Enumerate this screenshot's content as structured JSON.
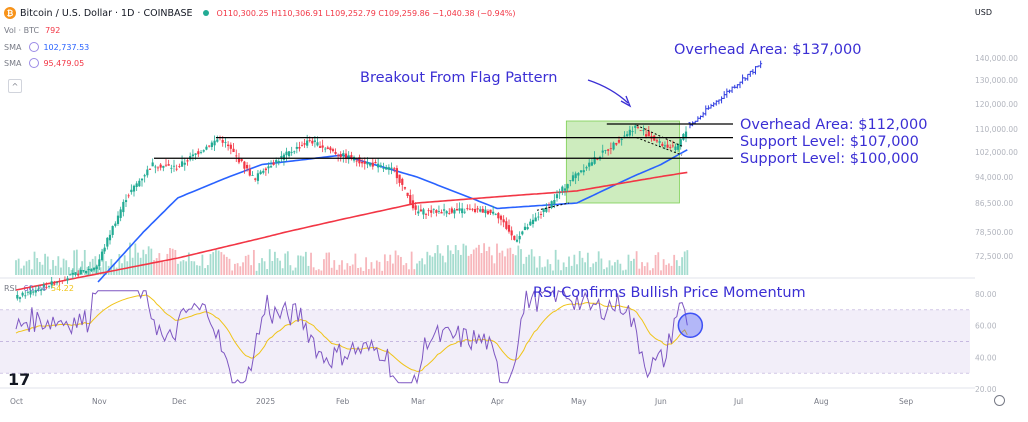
{
  "header": {
    "symbol": "Bitcoin / U.S. Dollar · 1D · COINBASE",
    "ohlc": "O110,300.25 H110,306.91 L109,252.79 C109,259.86 −1,040.38 (−0.94%)",
    "logo_glyph": "₿"
  },
  "indicators": {
    "vol_label": "Vol · BTC",
    "vol_value": "792",
    "sma1_label": "SMA",
    "sma1_value": "102,737.53",
    "sma2_label": "SMA",
    "sma2_value": "95,479.05"
  },
  "currency": "USD",
  "rsi_header": {
    "label": "RSI",
    "value1": "60.24",
    "value2": "54.22"
  },
  "annotations": {
    "overhead_137": "Overhead Area: $137,000",
    "breakout": "Breakout From Flag Pattern",
    "overhead_112": "Overhead Area: $112,000",
    "support_107": "Support Level: $107,000",
    "support_100": "Support Level: $100,000",
    "rsi_note": "RSI Confirms Bullish Price Momentum"
  },
  "colors": {
    "annotation": "#3b2fd4",
    "sma_fast": "#2962ff",
    "sma_slow": "#f23645",
    "candle_up": "#22ab94",
    "candle_down": "#f23645",
    "projection": "#2f3ce0",
    "rsi_line": "#7e57c2",
    "rsi_ma": "#f0c419"
  },
  "chart_data": {
    "type": "candlestick",
    "y_axis_ticks": [
      "140,000.00",
      "130,000.00",
      "120,000.00",
      "110,000.00",
      "102,000.00",
      "94,000.00",
      "86,500.00",
      "78,500.00",
      "72,500.00"
    ],
    "y_axis_values": [
      140000,
      130000,
      120000,
      110000,
      102000,
      94000,
      86500,
      78500,
      72500
    ],
    "x_axis_ticks": [
      "Oct",
      "Nov",
      "Dec",
      "2025",
      "Feb",
      "Mar",
      "Apr",
      "May",
      "Jun",
      "Jul",
      "Aug",
      "Sep"
    ],
    "horizontal_levels": [
      112000,
      107000,
      100000
    ],
    "target_level": 137000,
    "price_path": [
      {
        "date": "Oct",
        "close": 62000
      },
      {
        "date": "Nov",
        "close": 70000
      },
      {
        "date": "Nov 12",
        "close": 88000
      },
      {
        "date": "Nov 22",
        "close": 98000
      },
      {
        "date": "Dec",
        "close": 97000
      },
      {
        "date": "Dec 17",
        "close": 107000
      },
      {
        "date": "Dec 30",
        "close": 93000
      },
      {
        "date": "2025",
        "close": 96000
      },
      {
        "date": "Jan 20",
        "close": 106000
      },
      {
        "date": "Feb",
        "close": 101000
      },
      {
        "date": "Feb 20",
        "close": 96000
      },
      {
        "date": "Mar",
        "close": 84000
      },
      {
        "date": "Mar 20",
        "close": 84500
      },
      {
        "date": "Apr",
        "close": 84000
      },
      {
        "date": "Apr 8",
        "close": 76500
      },
      {
        "date": "Apr 20",
        "close": 85000
      },
      {
        "date": "May",
        "close": 95000
      },
      {
        "date": "May 12",
        "close": 103000
      },
      {
        "date": "May 22",
        "close": 111000
      },
      {
        "date": "Jun",
        "close": 105000
      },
      {
        "date": "Jun 6",
        "close": 103000
      },
      {
        "date": "Jun 10",
        "close": 109259.86
      }
    ],
    "sma_fast_path": [
      {
        "date": "Nov",
        "value": 66000
      },
      {
        "date": "Dec",
        "value": 88000
      },
      {
        "date": "2025",
        "value": 98000
      },
      {
        "date": "Feb",
        "value": 101000
      },
      {
        "date": "Mar",
        "value": 94000
      },
      {
        "date": "Apr",
        "value": 85000
      },
      {
        "date": "May",
        "value": 86500
      },
      {
        "date": "Jun",
        "value": 98000
      },
      {
        "date": "Jun 10",
        "value": 102737.53
      }
    ],
    "sma_slow_path": [
      {
        "date": "Oct",
        "value": 64000
      },
      {
        "date": "Dec",
        "value": 72000
      },
      {
        "date": "Feb",
        "value": 82000
      },
      {
        "date": "Mar",
        "value": 86500
      },
      {
        "date": "May",
        "value": 90000
      },
      {
        "date": "Jun 10",
        "value": 95479.05
      }
    ],
    "rsi": {
      "y_axis_ticks": [
        "80.00",
        "60.00",
        "40.00",
        "20.00"
      ],
      "y_axis_values": [
        80,
        60,
        40,
        20
      ],
      "band": [
        30,
        70
      ],
      "current": 60.24,
      "ma": 54.22
    }
  }
}
